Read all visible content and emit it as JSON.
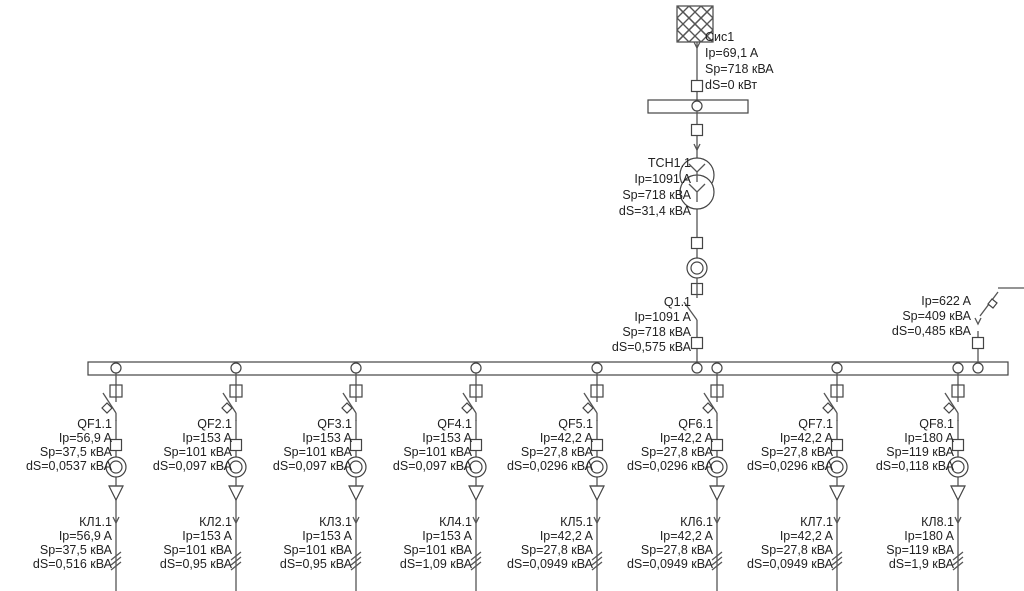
{
  "source": {
    "name": "Сис1",
    "ip": "Ip=69,1 A",
    "sp": "Sp=718 кВА",
    "ds": "dS=0 кВт"
  },
  "transformer": {
    "name": "ТСН1.1",
    "ip": "Ip=1091 A",
    "sp": "Sp=718 кВА",
    "ds": "dS=31,4 кВА"
  },
  "incomer": {
    "name": "Q1.1",
    "ip": "Ip=1091 A",
    "sp": "Sp=718 кВА",
    "ds": "dS=0,575 кВА"
  },
  "tie": {
    "ip": "Ip=622 A",
    "sp": "Sp=409 кВА",
    "ds": "dS=0,485 кВА"
  },
  "feeders": [
    {
      "breaker": {
        "name": "QF1.1",
        "ip": "Ip=56,9 A",
        "sp": "Sp=37,5 кВА",
        "ds": "dS=0,0537 кВА"
      },
      "cable": {
        "name": "КЛ1.1",
        "ip": "Ip=56,9 A",
        "sp": "Sp=37,5 кВА",
        "ds": "dS=0,516 кВА"
      }
    },
    {
      "breaker": {
        "name": "QF2.1",
        "ip": "Ip=153 A",
        "sp": "Sp=101 кВА",
        "ds": "dS=0,097 кВА"
      },
      "cable": {
        "name": "КЛ2.1",
        "ip": "Ip=153 A",
        "sp": "Sp=101 кВА",
        "ds": "dS=0,95 кВА"
      }
    },
    {
      "breaker": {
        "name": "QF3.1",
        "ip": "Ip=153 A",
        "sp": "Sp=101 кВА",
        "ds": "dS=0,097 кВА"
      },
      "cable": {
        "name": "КЛ3.1",
        "ip": "Ip=153 A",
        "sp": "Sp=101 кВА",
        "ds": "dS=0,95 кВА"
      }
    },
    {
      "breaker": {
        "name": "QF4.1",
        "ip": "Ip=153 A",
        "sp": "Sp=101 кВА",
        "ds": "dS=0,097 кВА"
      },
      "cable": {
        "name": "КЛ4.1",
        "ip": "Ip=153 A",
        "sp": "Sp=101 кВА",
        "ds": "dS=1,09 кВА"
      }
    },
    {
      "breaker": {
        "name": "QF5.1",
        "ip": "Ip=42,2 A",
        "sp": "Sp=27,8 кВА",
        "ds": "dS=0,0296 кВА"
      },
      "cable": {
        "name": "КЛ5.1",
        "ip": "Ip=42,2 A",
        "sp": "Sp=27,8 кВА",
        "ds": "dS=0,0949 кВА"
      }
    },
    {
      "breaker": {
        "name": "QF6.1",
        "ip": "Ip=42,2 A",
        "sp": "Sp=27,8 кВА",
        "ds": "dS=0,0296 кВА"
      },
      "cable": {
        "name": "КЛ6.1",
        "ip": "Ip=42,2 A",
        "sp": "Sp=27,8 кВА",
        "ds": "dS=0,0949 кВА"
      }
    },
    {
      "breaker": {
        "name": "QF7.1",
        "ip": "Ip=42,2 A",
        "sp": "Sp=27,8 кВА",
        "ds": "dS=0,0296 кВА"
      },
      "cable": {
        "name": "КЛ7.1",
        "ip": "Ip=42,2 A",
        "sp": "Sp=27,8 кВА",
        "ds": "dS=0,0949 кВА"
      }
    },
    {
      "breaker": {
        "name": "QF8.1",
        "ip": "Ip=180 A",
        "sp": "Sp=119 кВА",
        "ds": "dS=0,118 кВА"
      },
      "cable": {
        "name": "КЛ8.1",
        "ip": "Ip=180 A",
        "sp": "Sp=119 кВА",
        "ds": "dS=1,9 кВА"
      }
    }
  ]
}
